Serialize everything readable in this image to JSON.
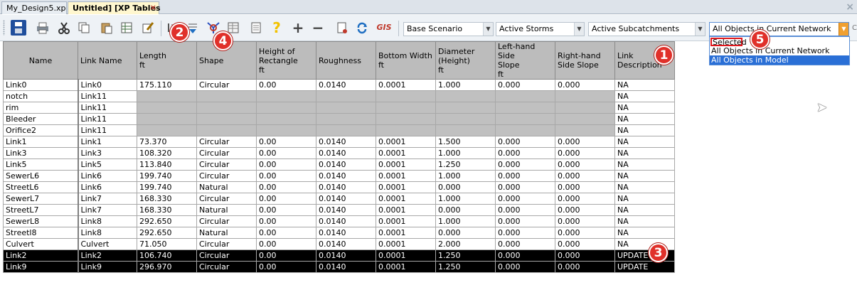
{
  "tabs": [
    {
      "label": "My_Design5.xp"
    },
    {
      "label": "Untitled] [XP Tables",
      "close": "×"
    }
  ],
  "window_close": "×",
  "toolbar": {
    "icons": [
      "save-icon",
      "print-icon",
      "cut-icon",
      "copy-icon",
      "paste-icon",
      "export-icon",
      "edit-icon",
      "filter-icon",
      "sort-icon",
      "node-icon",
      "table-icon",
      "list-icon",
      "help-icon",
      "add-icon",
      "remove-icon",
      "book-icon",
      "refresh-icon",
      "gis-icon"
    ],
    "help_glyph": "?",
    "add_glyph": "+",
    "remove_glyph": "−",
    "gis_label": "GIS",
    "scenario": "Base Scenario",
    "storms": "Active Storms",
    "subcatchments": "Active Subcatchments",
    "objects": "All Objects in Current Network",
    "edge_glyph": "C"
  },
  "dropdown": {
    "options": [
      "Selected",
      "All Objects in Current Network",
      "All Objects in Model"
    ],
    "highlighted_index": 2
  },
  "grid": {
    "headers": [
      {
        "line1": "Name",
        "line2": "",
        "line3": ""
      },
      {
        "line1": "Link Name",
        "line2": "",
        "line3": ""
      },
      {
        "line1": "Length",
        "line2": "ft",
        "line3": ""
      },
      {
        "line1": "Shape",
        "line2": "",
        "line3": ""
      },
      {
        "line1": "Height of",
        "line2": "Rectangle",
        "line3": "ft"
      },
      {
        "line1": "Roughness",
        "line2": "",
        "line3": ""
      },
      {
        "line1": "Bottom Width",
        "line2": "ft",
        "line3": ""
      },
      {
        "line1": "Diameter",
        "line2": "(Height)",
        "line3": "ft"
      },
      {
        "line1": "Left-hand Side",
        "line2": "Slope",
        "line3": "ft"
      },
      {
        "line1": "Right-hand",
        "line2": "Side Slope",
        "line3": ""
      },
      {
        "line1": "Link",
        "line2": "Description",
        "line3": ""
      }
    ],
    "rows": [
      {
        "cells": [
          "Link0",
          "Link0",
          "175.110",
          "Circular",
          "0.00",
          "0.0140",
          "0.0001",
          "1.000",
          "0.000",
          "0.000",
          "NA"
        ],
        "gray": false,
        "selected": false
      },
      {
        "cells": [
          "notch",
          "Link11",
          "",
          "",
          "",
          "",
          "",
          "",
          "",
          "",
          "NA"
        ],
        "gray": true,
        "selected": false
      },
      {
        "cells": [
          "rim",
          "Link11",
          "",
          "",
          "",
          "",
          "",
          "",
          "",
          "",
          "NA"
        ],
        "gray": true,
        "selected": false
      },
      {
        "cells": [
          "Bleeder",
          "Link11",
          "",
          "",
          "",
          "",
          "",
          "",
          "",
          "",
          "NA"
        ],
        "gray": true,
        "selected": false
      },
      {
        "cells": [
          "Orifice2",
          "Link11",
          "",
          "",
          "",
          "",
          "",
          "",
          "",
          "",
          "NA"
        ],
        "gray": true,
        "selected": false
      },
      {
        "cells": [
          "Link1",
          "Link1",
          "73.370",
          "Circular",
          "0.00",
          "0.0140",
          "0.0001",
          "1.500",
          "0.000",
          "0.000",
          "NA"
        ],
        "gray": false,
        "selected": false
      },
      {
        "cells": [
          "Link3",
          "Link3",
          "108.320",
          "Circular",
          "0.00",
          "0.0140",
          "0.0001",
          "1.000",
          "0.000",
          "0.000",
          "NA"
        ],
        "gray": false,
        "selected": false
      },
      {
        "cells": [
          "Link5",
          "Link5",
          "113.840",
          "Circular",
          "0.00",
          "0.0140",
          "0.0001",
          "1.250",
          "0.000",
          "0.000",
          "NA"
        ],
        "gray": false,
        "selected": false
      },
      {
        "cells": [
          "SewerL6",
          "Link6",
          "199.740",
          "Circular",
          "0.00",
          "0.0140",
          "0.0001",
          "1.000",
          "0.000",
          "0.000",
          "NA"
        ],
        "gray": false,
        "selected": false
      },
      {
        "cells": [
          "StreetL6",
          "Link6",
          "199.740",
          "Natural",
          "0.00",
          "0.0140",
          "0.0001",
          "0.000",
          "0.000",
          "0.000",
          "NA"
        ],
        "gray": false,
        "selected": false
      },
      {
        "cells": [
          "SewerL7",
          "Link7",
          "168.330",
          "Circular",
          "0.00",
          "0.0140",
          "0.0001",
          "1.000",
          "0.000",
          "0.000",
          "NA"
        ],
        "gray": false,
        "selected": false
      },
      {
        "cells": [
          "StreetL7",
          "Link7",
          "168.330",
          "Natural",
          "0.00",
          "0.0140",
          "0.0001",
          "0.000",
          "0.000",
          "0.000",
          "NA"
        ],
        "gray": false,
        "selected": false
      },
      {
        "cells": [
          "SewerL8",
          "Link8",
          "292.650",
          "Circular",
          "0.00",
          "0.0140",
          "0.0001",
          "1.000",
          "0.000",
          "0.000",
          "NA"
        ],
        "gray": false,
        "selected": false
      },
      {
        "cells": [
          "Streetl8",
          "Link8",
          "292.650",
          "Natural",
          "0.00",
          "0.0140",
          "0.0001",
          "0.000",
          "0.000",
          "0.000",
          "NA"
        ],
        "gray": false,
        "selected": false
      },
      {
        "cells": [
          "Culvert",
          "Culvert",
          "71.050",
          "Circular",
          "0.00",
          "0.0140",
          "0.0001",
          "2.000",
          "0.000",
          "0.000",
          "NA"
        ],
        "gray": false,
        "selected": false
      },
      {
        "cells": [
          "Link2",
          "Link2",
          "106.740",
          "Circular",
          "0.00",
          "0.0140",
          "0.0001",
          "1.250",
          "0.000",
          "0.000",
          "UPDATE"
        ],
        "gray": false,
        "selected": true
      },
      {
        "cells": [
          "Link9",
          "Link9",
          "296.970",
          "Circular",
          "0.00",
          "0.0140",
          "0.0001",
          "1.250",
          "0.000",
          "0.000",
          "UPDATE"
        ],
        "gray": false,
        "selected": true
      }
    ]
  },
  "callouts": [
    "1",
    "2",
    "3",
    "4",
    "5"
  ],
  "colors": {
    "accent": "#e0302a",
    "selection": "#000000",
    "highlight": "#2a6fd6",
    "header": "#bcbcbc"
  }
}
